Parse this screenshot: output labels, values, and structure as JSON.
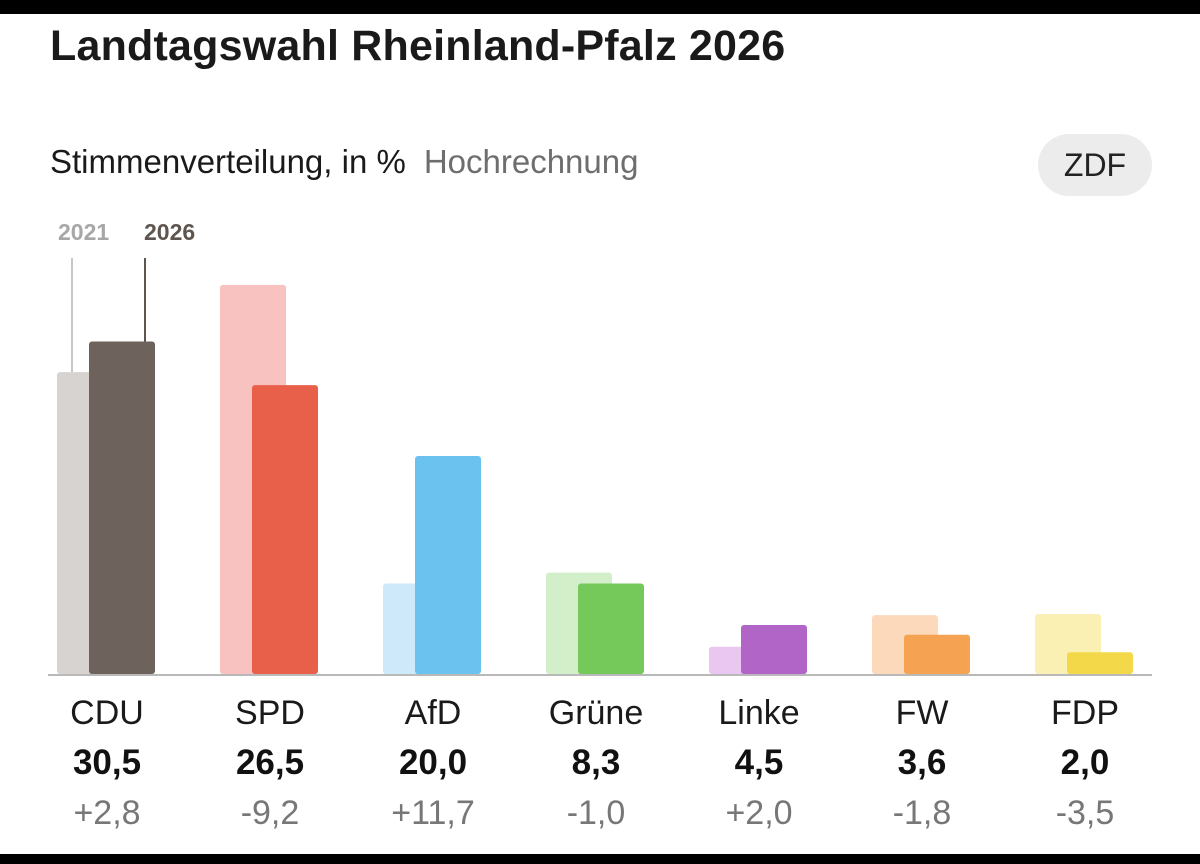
{
  "title": "Landtagswahl Rheinland-Pfalz 2026",
  "subtitle": "Stimmenverteilung, in %",
  "subtitle_note": "Hochrechnung",
  "source": "ZDF",
  "legend": {
    "previous": "2021",
    "current": "2026"
  },
  "chart_data": {
    "type": "bar",
    "title": "Stimmenverteilung, in %",
    "categories": [
      "CDU",
      "SPD",
      "AfD",
      "Grüne",
      "Linke",
      "FW",
      "FDP"
    ],
    "series": [
      {
        "name": "2021",
        "values": [
          27.7,
          35.7,
          8.3,
          9.3,
          2.5,
          5.4,
          5.5
        ]
      },
      {
        "name": "2026",
        "values": [
          30.5,
          26.5,
          20.0,
          8.3,
          4.5,
          3.6,
          2.0
        ]
      }
    ],
    "value_labels": [
      "30,5",
      "26,5",
      "20,0",
      "8,3",
      "4,5",
      "3,6",
      "2,0"
    ],
    "change_labels": [
      "+2,8",
      "-9,2",
      "+11,7",
      "-1,0",
      "+2,0",
      "-1,8",
      "-3,5"
    ],
    "colors_current": [
      "#6d625c",
      "#e8604a",
      "#6bc2ef",
      "#74c95a",
      "#b165c7",
      "#f5a352",
      "#f3d84a"
    ],
    "colors_previous": [
      "#d6d3d1",
      "#f7c2bf",
      "#cde9fa",
      "#d3efca",
      "#e9c7f1",
      "#fcd9bb",
      "#fbf0b4"
    ],
    "ylim": [
      0,
      40
    ],
    "xlabel": "",
    "ylabel": ""
  }
}
